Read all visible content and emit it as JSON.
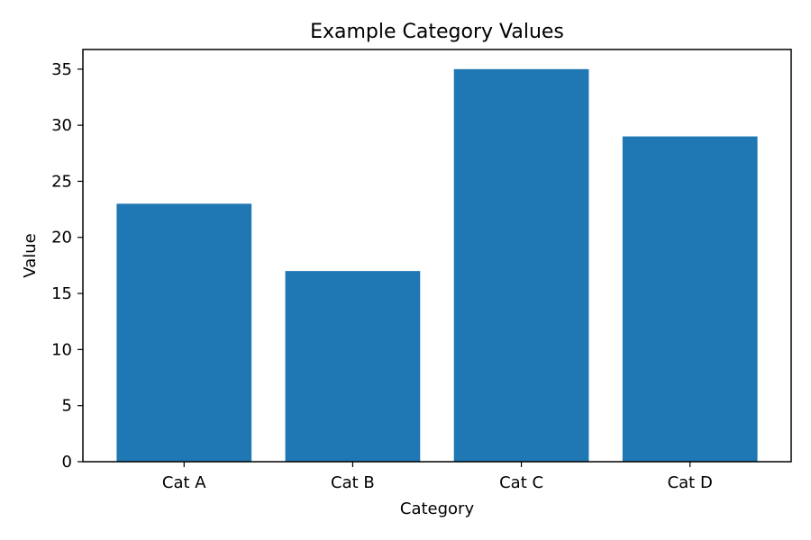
{
  "chart_data": {
    "type": "bar",
    "title": "Example Category Values",
    "xlabel": "Category",
    "ylabel": "Value",
    "categories": [
      "Cat A",
      "Cat B",
      "Cat C",
      "Cat D"
    ],
    "values": [
      23,
      17,
      35,
      29
    ],
    "ylim": [
      0,
      36.75
    ],
    "yticks": [
      0,
      5,
      10,
      15,
      20,
      25,
      30,
      35
    ],
    "grid": false,
    "legend": "none",
    "bar_color": "#1f77b4"
  }
}
